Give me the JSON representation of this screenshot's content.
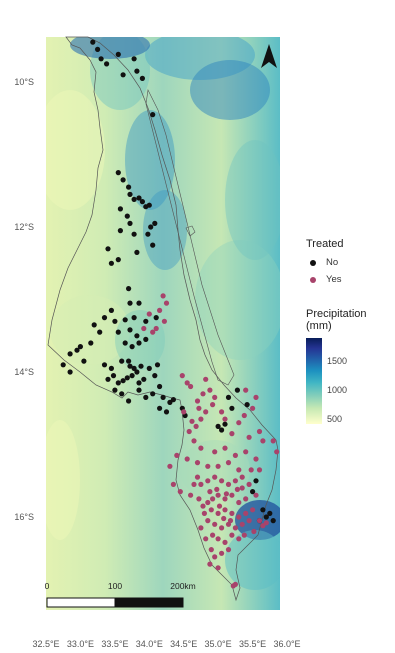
{
  "map": {
    "type": "choropleth-with-points",
    "lon_range": [
      32.5,
      36.0
    ],
    "lat_range": [
      -17.1,
      -9.35
    ],
    "x_ticks": [
      "32.5°E",
      "33.0°E",
      "33.5°E",
      "34.0°E",
      "34.5°E",
      "35.0°E",
      "35.5°E",
      "36.0°E"
    ],
    "x_tick_values": [
      32.5,
      33.0,
      33.5,
      34.0,
      34.5,
      35.0,
      35.5,
      36.0
    ],
    "y_ticks": [
      "10°S",
      "12°S",
      "14°S",
      "16°S"
    ],
    "y_tick_values": [
      -10,
      -12,
      -14,
      -16
    ],
    "north_arrow": "north-arrow-icon",
    "scale_bar": {
      "labels": [
        "0",
        "100",
        "200km"
      ]
    }
  },
  "legend_treated": {
    "title": "Treated",
    "items": [
      {
        "label": "No",
        "color": "#111111"
      },
      {
        "label": "Yes",
        "color": "#a8436b"
      }
    ]
  },
  "legend_precip": {
    "title": "Precipitation (mm)",
    "ticks": [
      "1500",
      "1000",
      "500"
    ],
    "tick_values": [
      1500,
      1000,
      500
    ],
    "range": [
      400,
      1900
    ],
    "colors": [
      "#ffffcc",
      "#c7e9b4",
      "#7fcdbb",
      "#41b6c4",
      "#1d91c0",
      "#225ea8",
      "#253494",
      "#081d58"
    ]
  },
  "chart_data": {
    "type": "scatter",
    "title": "",
    "series": [
      {
        "name": "No",
        "color": "#111111",
        "points": [
          [
            33.18,
            -9.45
          ],
          [
            33.25,
            -9.55
          ],
          [
            33.3,
            -9.68
          ],
          [
            33.38,
            -9.75
          ],
          [
            33.55,
            -9.62
          ],
          [
            33.78,
            -9.68
          ],
          [
            33.82,
            -9.85
          ],
          [
            33.9,
            -9.95
          ],
          [
            33.62,
            -9.9
          ],
          [
            34.05,
            -10.45
          ],
          [
            33.55,
            -11.25
          ],
          [
            33.62,
            -11.35
          ],
          [
            33.7,
            -11.45
          ],
          [
            33.72,
            -11.55
          ],
          [
            33.78,
            -11.62
          ],
          [
            33.85,
            -11.6
          ],
          [
            33.9,
            -11.65
          ],
          [
            33.95,
            -11.72
          ],
          [
            34.0,
            -11.7
          ],
          [
            33.58,
            -11.75
          ],
          [
            33.68,
            -11.85
          ],
          [
            33.72,
            -11.95
          ],
          [
            33.58,
            -12.05
          ],
          [
            33.78,
            -12.1
          ],
          [
            34.02,
            -12.0
          ],
          [
            34.08,
            -11.95
          ],
          [
            33.98,
            -12.1
          ],
          [
            34.05,
            -12.25
          ],
          [
            33.82,
            -12.35
          ],
          [
            33.55,
            -12.45
          ],
          [
            33.45,
            -12.5
          ],
          [
            33.4,
            -12.3
          ],
          [
            33.7,
            -12.85
          ],
          [
            33.72,
            -13.05
          ],
          [
            33.85,
            -13.05
          ],
          [
            33.45,
            -13.15
          ],
          [
            33.35,
            -13.25
          ],
          [
            33.5,
            -13.3
          ],
          [
            33.65,
            -13.28
          ],
          [
            33.78,
            -13.25
          ],
          [
            33.95,
            -13.3
          ],
          [
            34.1,
            -13.25
          ],
          [
            33.2,
            -13.35
          ],
          [
            33.28,
            -13.45
          ],
          [
            33.55,
            -13.45
          ],
          [
            33.72,
            -13.42
          ],
          [
            33.82,
            -13.5
          ],
          [
            33.65,
            -13.6
          ],
          [
            33.75,
            -13.65
          ],
          [
            33.85,
            -13.6
          ],
          [
            33.95,
            -13.55
          ],
          [
            33.15,
            -13.6
          ],
          [
            33.0,
            -13.65
          ],
          [
            32.95,
            -13.7
          ],
          [
            32.85,
            -13.75
          ],
          [
            33.05,
            -13.85
          ],
          [
            32.75,
            -13.9
          ],
          [
            32.85,
            -14.0
          ],
          [
            33.35,
            -13.9
          ],
          [
            33.45,
            -13.95
          ],
          [
            33.6,
            -13.85
          ],
          [
            33.7,
            -13.85
          ],
          [
            33.72,
            -13.92
          ],
          [
            33.78,
            -13.95
          ],
          [
            33.82,
            -14.0
          ],
          [
            33.88,
            -13.92
          ],
          [
            33.75,
            -14.05
          ],
          [
            33.68,
            -14.08
          ],
          [
            33.62,
            -14.12
          ],
          [
            33.55,
            -14.15
          ],
          [
            33.48,
            -14.05
          ],
          [
            33.4,
            -14.1
          ],
          [
            33.5,
            -14.25
          ],
          [
            33.6,
            -14.3
          ],
          [
            33.85,
            -14.15
          ],
          [
            33.92,
            -14.1
          ],
          [
            34.0,
            -13.95
          ],
          [
            34.08,
            -14.05
          ],
          [
            34.15,
            -14.2
          ],
          [
            34.05,
            -14.3
          ],
          [
            33.95,
            -14.35
          ],
          [
            33.85,
            -14.25
          ],
          [
            34.2,
            -14.35
          ],
          [
            34.3,
            -14.42
          ],
          [
            34.35,
            -14.38
          ],
          [
            34.12,
            -13.9
          ],
          [
            34.25,
            -14.55
          ],
          [
            34.15,
            -14.5
          ],
          [
            33.7,
            -14.4
          ],
          [
            34.48,
            -14.5
          ],
          [
            34.52,
            -14.6
          ],
          [
            35.0,
            -14.75
          ],
          [
            35.1,
            -14.72
          ],
          [
            35.05,
            -14.8
          ],
          [
            35.2,
            -14.5
          ],
          [
            35.15,
            -14.35
          ],
          [
            35.28,
            -14.25
          ],
          [
            35.42,
            -14.45
          ],
          [
            35.5,
            -15.65
          ],
          [
            35.55,
            -15.5
          ],
          [
            35.65,
            -15.9
          ],
          [
            35.7,
            -16.0
          ],
          [
            35.6,
            -16.05
          ],
          [
            35.75,
            -15.95
          ],
          [
            35.8,
            -16.05
          ]
        ]
      },
      {
        "name": "Yes",
        "color": "#a8436b",
        "points": [
          [
            34.2,
            -12.95
          ],
          [
            34.25,
            -13.05
          ],
          [
            34.15,
            -13.15
          ],
          [
            34.22,
            -13.3
          ],
          [
            34.1,
            -13.4
          ],
          [
            34.0,
            -13.2
          ],
          [
            33.92,
            -13.4
          ],
          [
            34.05,
            -13.45
          ],
          [
            34.48,
            -14.05
          ],
          [
            34.55,
            -14.15
          ],
          [
            34.7,
            -14.4
          ],
          [
            34.72,
            -14.5
          ],
          [
            34.62,
            -14.68
          ],
          [
            34.68,
            -14.75
          ],
          [
            34.75,
            -14.65
          ],
          [
            34.82,
            -14.55
          ],
          [
            34.92,
            -14.45
          ],
          [
            34.95,
            -14.35
          ],
          [
            34.88,
            -14.25
          ],
          [
            34.78,
            -14.3
          ],
          [
            35.05,
            -14.55
          ],
          [
            35.1,
            -14.65
          ],
          [
            35.2,
            -14.85
          ],
          [
            35.3,
            -14.7
          ],
          [
            35.38,
            -14.6
          ],
          [
            35.45,
            -14.9
          ],
          [
            35.6,
            -14.82
          ],
          [
            35.65,
            -14.95
          ],
          [
            35.5,
            -14.5
          ],
          [
            35.55,
            -14.35
          ],
          [
            35.4,
            -14.25
          ],
          [
            34.82,
            -14.1
          ],
          [
            34.6,
            -14.2
          ],
          [
            34.5,
            -14.55
          ],
          [
            34.58,
            -14.82
          ],
          [
            34.65,
            -14.95
          ],
          [
            34.75,
            -15.05
          ],
          [
            34.95,
            -15.1
          ],
          [
            35.1,
            -15.05
          ],
          [
            35.25,
            -15.15
          ],
          [
            35.4,
            -15.1
          ],
          [
            35.55,
            -15.2
          ],
          [
            35.6,
            -15.35
          ],
          [
            35.3,
            -15.35
          ],
          [
            35.15,
            -15.25
          ],
          [
            35.0,
            -15.3
          ],
          [
            34.85,
            -15.3
          ],
          [
            34.7,
            -15.45
          ],
          [
            34.65,
            -15.55
          ],
          [
            34.75,
            -15.55
          ],
          [
            34.85,
            -15.5
          ],
          [
            34.95,
            -15.45
          ],
          [
            35.05,
            -15.5
          ],
          [
            35.15,
            -15.55
          ],
          [
            35.25,
            -15.5
          ],
          [
            35.35,
            -15.6
          ],
          [
            35.45,
            -15.55
          ],
          [
            35.55,
            -15.7
          ],
          [
            35.4,
            -15.75
          ],
          [
            35.3,
            -15.8
          ],
          [
            35.2,
            -15.7
          ],
          [
            35.1,
            -15.75
          ],
          [
            35.0,
            -15.7
          ],
          [
            34.92,
            -15.75
          ],
          [
            34.85,
            -15.8
          ],
          [
            34.78,
            -15.85
          ],
          [
            34.72,
            -15.75
          ],
          [
            34.9,
            -15.9
          ],
          [
            35.0,
            -15.95
          ],
          [
            35.1,
            -15.9
          ],
          [
            35.2,
            -15.95
          ],
          [
            35.3,
            -16.0
          ],
          [
            35.4,
            -15.95
          ],
          [
            35.5,
            -15.9
          ],
          [
            35.45,
            -16.05
          ],
          [
            35.35,
            -16.1
          ],
          [
            35.25,
            -16.15
          ],
          [
            35.15,
            -16.1
          ],
          [
            35.05,
            -16.15
          ],
          [
            34.95,
            -16.1
          ],
          [
            34.85,
            -16.05
          ],
          [
            34.8,
            -15.95
          ],
          [
            34.92,
            -16.25
          ],
          [
            35.0,
            -16.3
          ],
          [
            35.1,
            -16.35
          ],
          [
            35.2,
            -16.25
          ],
          [
            35.3,
            -16.3
          ],
          [
            34.9,
            -16.45
          ],
          [
            34.95,
            -16.55
          ],
          [
            35.05,
            -16.5
          ],
          [
            35.15,
            -16.45
          ],
          [
            34.88,
            -16.65
          ],
          [
            35.0,
            -16.7
          ],
          [
            35.22,
            -16.95
          ],
          [
            35.25,
            -16.93
          ],
          [
            35.6,
            -16.05
          ],
          [
            35.7,
            -16.08
          ],
          [
            35.65,
            -16.12
          ],
          [
            35.8,
            -14.95
          ],
          [
            35.85,
            -15.1
          ],
          [
            34.35,
            -15.55
          ],
          [
            34.45,
            -15.65
          ],
          [
            34.6,
            -15.7
          ],
          [
            34.3,
            -15.3
          ],
          [
            34.4,
            -15.15
          ],
          [
            34.55,
            -15.2
          ],
          [
            34.7,
            -15.25
          ],
          [
            34.98,
            -15.62
          ],
          [
            35.12,
            -15.68
          ],
          [
            35.02,
            -15.85
          ],
          [
            34.88,
            -15.65
          ],
          [
            35.28,
            -15.62
          ],
          [
            35.35,
            -15.45
          ],
          [
            35.48,
            -15.35
          ],
          [
            35.52,
            -16.2
          ],
          [
            35.38,
            -16.25
          ],
          [
            35.18,
            -16.05
          ],
          [
            34.75,
            -16.15
          ],
          [
            34.82,
            -16.3
          ],
          [
            35.08,
            -16.02
          ]
        ]
      }
    ]
  }
}
